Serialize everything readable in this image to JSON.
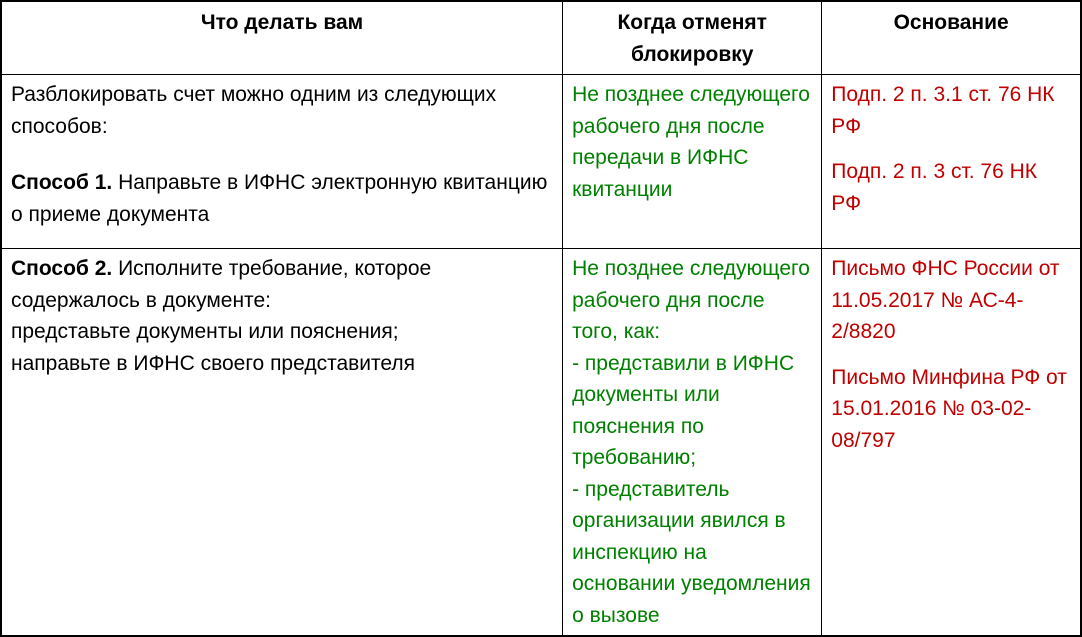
{
  "table": {
    "headers": [
      "Что делать вам",
      "Когда отменят блокировку",
      "Основание"
    ],
    "rows": [
      {
        "what": {
          "intro": "Разблокировать счет можно одним из следующих способов:",
          "method_label": "Способ 1.",
          "method_text": "Направьте в ИФНС электронную квитанцию о приеме документа"
        },
        "when": [
          "Не позднее следующего рабочего дня после передачи в ИФНС квитанции"
        ],
        "basis": [
          "Подп. 2 п. 3.1 ст. 76 НК РФ",
          "Подп. 2 п. 3 ст. 76 НК РФ"
        ]
      },
      {
        "what": {
          "method_label": "Способ 2.",
          "method_text": "Исполните требование, которое содержалось в документе:",
          "lines": [
            "представьте документы или пояснения;",
            "направьте в ИФНС своего представителя"
          ]
        },
        "when": [
          "Не позднее следующего рабочего дня после того, как:",
          "- представили в ИФНС документы или пояснения по требованию;",
          "- представитель организации явился в инспекцию на основании уведомления о вызове"
        ],
        "basis": [
          "Письмо ФНС России от 11.05.2017 № АС-4-2/8820",
          "Письмо Минфина РФ от 15.01.2016 № 03-02-08/797"
        ]
      }
    ]
  },
  "colors": {
    "deadline_text_green": "#008000",
    "reference_text_red": "#C00000",
    "table_border_black": "#000000"
  }
}
